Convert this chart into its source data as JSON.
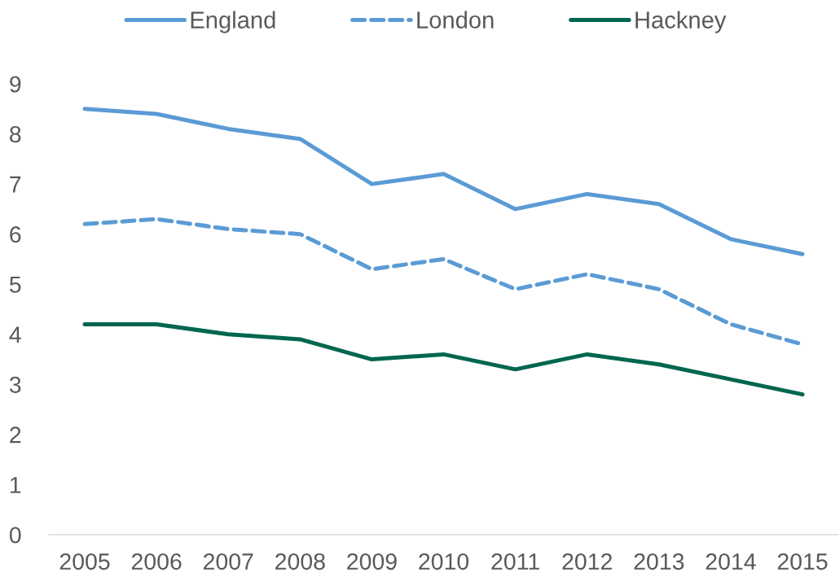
{
  "chart_data": {
    "type": "line",
    "categories": [
      "2005",
      "2006",
      "2007",
      "2008",
      "2009",
      "2010",
      "2011",
      "2012",
      "2013",
      "2014",
      "2015"
    ],
    "ylim": [
      0,
      9
    ],
    "yticks": [
      0,
      1,
      2,
      3,
      4,
      5,
      6,
      7,
      8,
      9
    ],
    "legend": "top",
    "series": [
      {
        "name": "England",
        "color": "#5b9bd5",
        "line_style": "solid",
        "values": [
          8.5,
          8.4,
          8.1,
          7.9,
          7.0,
          7.2,
          6.5,
          6.8,
          6.6,
          5.9,
          5.6
        ]
      },
      {
        "name": "London",
        "color": "#5b9bd5",
        "line_style": "dashed",
        "values": [
          6.2,
          6.3,
          6.1,
          6.0,
          5.3,
          5.5,
          4.9,
          5.2,
          4.9,
          4.2,
          3.8
        ]
      },
      {
        "name": "Hackney",
        "color": "#00664f",
        "line_style": "solid",
        "values": [
          4.2,
          4.2,
          4.0,
          3.9,
          3.5,
          3.6,
          3.3,
          3.6,
          3.4,
          3.1,
          2.8
        ]
      }
    ]
  }
}
